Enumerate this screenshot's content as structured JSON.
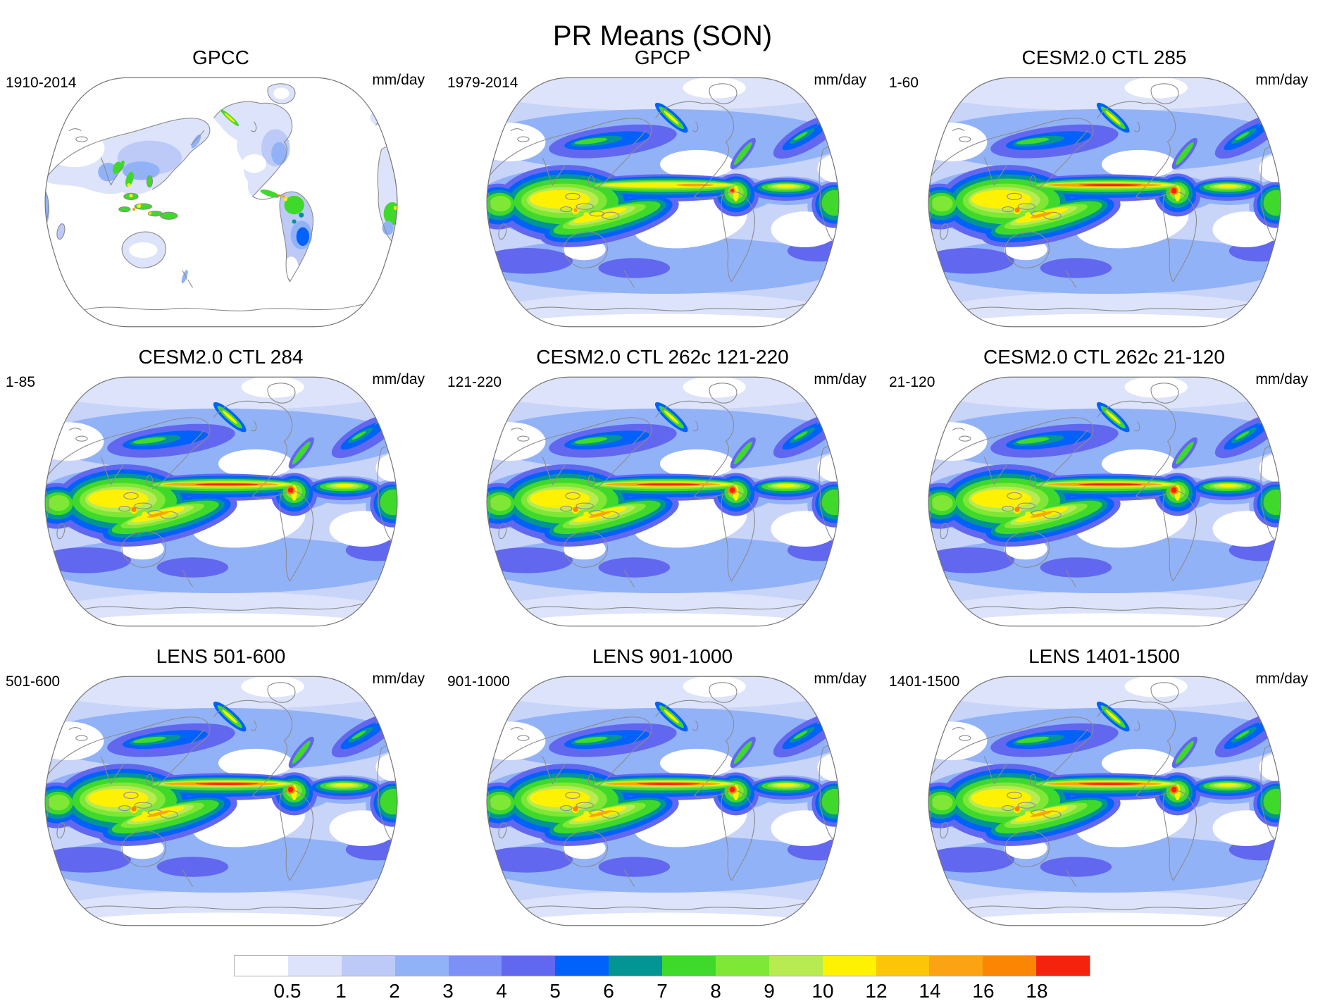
{
  "figure": {
    "title": "PR Means (SON)",
    "units_label": "mm/day"
  },
  "panels": [
    {
      "title": "GPCC",
      "left_label": "1910-2014",
      "right_label": "mm/day",
      "variant": "observations-land-only"
    },
    {
      "title": "GPCP",
      "left_label": "1979-2014",
      "right_label": "mm/day",
      "variant": "observations-global"
    },
    {
      "title": "CESM2.0 CTL 285",
      "left_label": "1-60",
      "right_label": "mm/day",
      "variant": "model"
    },
    {
      "title": "CESM2.0 CTL 284",
      "left_label": "1-85",
      "right_label": "mm/day",
      "variant": "model"
    },
    {
      "title": "CESM2.0 CTL 262c 121-220",
      "left_label": "121-220",
      "right_label": "mm/day",
      "variant": "model"
    },
    {
      "title": "CESM2.0 CTL 262c 21-120",
      "left_label": "21-120",
      "right_label": "mm/day",
      "variant": "model"
    },
    {
      "title": "LENS 501-600",
      "left_label": "501-600",
      "right_label": "mm/day",
      "variant": "model"
    },
    {
      "title": "LENS 901-1000",
      "left_label": "901-1000",
      "right_label": "mm/day",
      "variant": "model"
    },
    {
      "title": "LENS 1401-1500",
      "left_label": "1401-1500",
      "right_label": "mm/day",
      "variant": "model"
    }
  ],
  "colorbar": {
    "ticks": [
      "0.5",
      "1",
      "2",
      "3",
      "4",
      "5",
      "6",
      "7",
      "8",
      "9",
      "10",
      "12",
      "14",
      "16",
      "18"
    ],
    "colors": [
      "#ffffff",
      "#dce3fa",
      "#bdcaf8",
      "#92b2f8",
      "#7d90f5",
      "#6267ef",
      "#0161fb",
      "#029594",
      "#3fd92b",
      "#7fe735",
      "#b8eb52",
      "#fef102",
      "#fcc508",
      "#fba313",
      "#fb8604",
      "#f3230e"
    ]
  },
  "chart_data": {
    "type": "heatmap",
    "title": "PR Means (SON)",
    "variable": "precipitation mean",
    "season": "SON",
    "units": "mm/day",
    "projection": "global world map, Pacific-centered, Robinson-style outline, gray coastlines",
    "layout": {
      "rows": 3,
      "cols": 3,
      "legend_position": "bottom",
      "grid": false
    },
    "panels": [
      {
        "row": 1,
        "col": 1,
        "title": "GPCC",
        "period_label": "1910-2014",
        "units": "mm/day",
        "coverage": "land-only observations, ocean blank"
      },
      {
        "row": 1,
        "col": 2,
        "title": "GPCP",
        "period_label": "1979-2014",
        "units": "mm/day",
        "coverage": "global observations"
      },
      {
        "row": 1,
        "col": 3,
        "title": "CESM2.0 CTL 285",
        "period_label": "1-60",
        "units": "mm/day",
        "coverage": "global model, intense equatorial rain band"
      },
      {
        "row": 2,
        "col": 1,
        "title": "CESM2.0 CTL 284",
        "period_label": "1-85",
        "units": "mm/day",
        "coverage": "global model, intense equatorial rain band"
      },
      {
        "row": 2,
        "col": 2,
        "title": "CESM2.0 CTL 262c 121-220",
        "period_label": "121-220",
        "units": "mm/day",
        "coverage": "global model, intense equatorial rain band"
      },
      {
        "row": 2,
        "col": 3,
        "title": "CESM2.0 CTL 262c 21-120",
        "period_label": "21-120",
        "units": "mm/day",
        "coverage": "global model, intense equatorial rain band"
      },
      {
        "row": 3,
        "col": 1,
        "title": "LENS 501-600",
        "period_label": "501-600",
        "units": "mm/day",
        "coverage": "global model, intense equatorial rain band"
      },
      {
        "row": 3,
        "col": 2,
        "title": "LENS 901-1000",
        "period_label": "901-1000",
        "units": "mm/day",
        "coverage": "global model, intense equatorial rain band"
      },
      {
        "row": 3,
        "col": 3,
        "title": "LENS 1401-1500",
        "period_label": "1401-1500",
        "units": "mm/day",
        "coverage": "global model, intense equatorial rain band"
      }
    ],
    "color_scale": {
      "levels_mm_per_day": [
        0.5,
        1,
        2,
        3,
        4,
        5,
        6,
        7,
        8,
        9,
        10,
        12,
        14,
        16,
        18
      ],
      "cell_colors": [
        "#ffffff",
        "#dce3fa",
        "#bdcaf8",
        "#92b2f8",
        "#7d90f5",
        "#6267ef",
        "#0161fb",
        "#029594",
        "#3fd92b",
        "#7fe735",
        "#b8eb52",
        "#fef102",
        "#fcc508",
        "#fba313",
        "#fb8604",
        "#f3230e"
      ],
      "description": "white below 0.5 mm/day through blues, teal, greens, yellow, orange to red above 18 mm/day"
    }
  }
}
